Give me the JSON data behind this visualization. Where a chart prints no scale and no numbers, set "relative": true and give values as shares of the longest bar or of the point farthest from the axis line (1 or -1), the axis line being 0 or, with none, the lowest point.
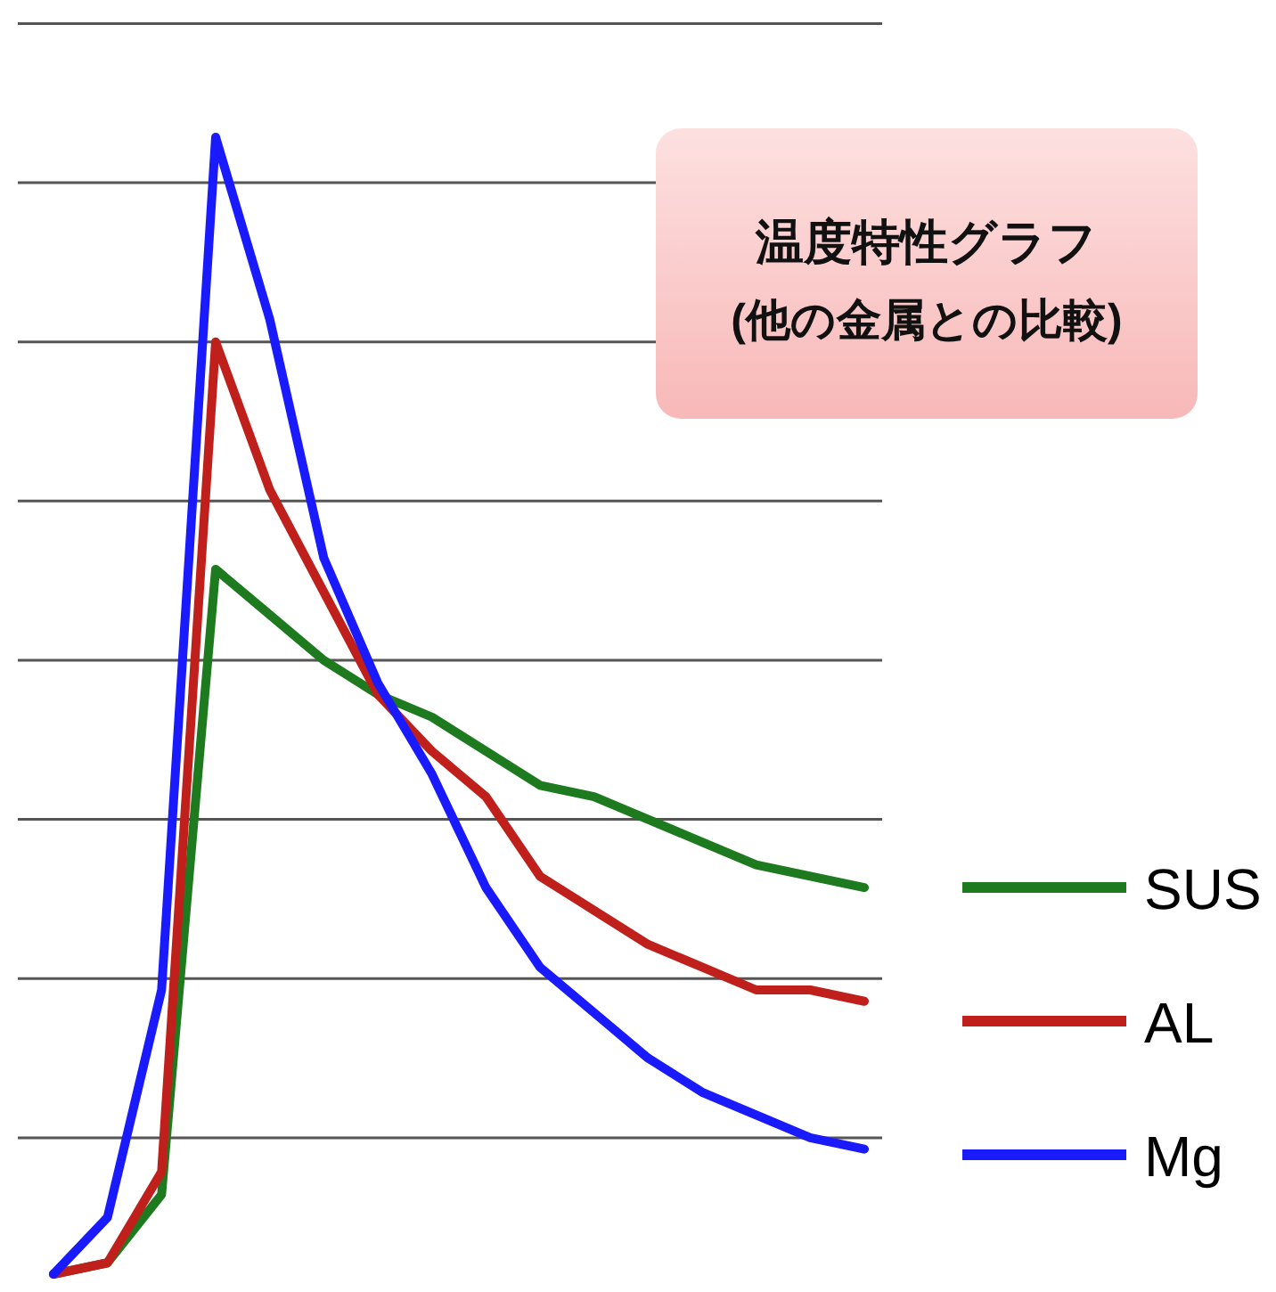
{
  "chart_data": {
    "type": "line",
    "relative": true,
    "title": "温度特性グラフ",
    "subtitle": "(他の金属との比較)",
    "categories": [
      null,
      null,
      null,
      null,
      null,
      null,
      null,
      null,
      null,
      null,
      null,
      null,
      null,
      null,
      null,
      null
    ],
    "series": [
      {
        "name": "SUS",
        "color": "#1e7a1e",
        "values": [
          0,
          0.01,
          0.07,
          0.62,
          0.58,
          0.54,
          0.51,
          0.49,
          0.46,
          0.43,
          0.42,
          0.4,
          0.38,
          0.36,
          0.35,
          0.34
        ]
      },
      {
        "name": "AL",
        "color": "#c0201b",
        "values": [
          0,
          0.01,
          0.09,
          0.82,
          0.69,
          0.6,
          0.51,
          0.46,
          0.42,
          0.35,
          0.32,
          0.29,
          0.27,
          0.25,
          0.25,
          0.24
        ]
      },
      {
        "name": "Mg",
        "color": "#1a1aff",
        "values": [
          0,
          0.05,
          0.25,
          1,
          0.84,
          0.63,
          0.52,
          0.44,
          0.34,
          0.27,
          0.23,
          0.19,
          0.16,
          0.14,
          0.12,
          0.11
        ]
      }
    ],
    "ref_lines": [
      {
        "axis": "y",
        "value": 0.12,
        "color": "#555555"
      },
      {
        "axis": "y",
        "value": 0.26,
        "color": "#555555"
      },
      {
        "axis": "y",
        "value": 0.4,
        "color": "#555555"
      },
      {
        "axis": "y",
        "value": 0.54,
        "color": "#555555"
      },
      {
        "axis": "y",
        "value": 0.68,
        "color": "#555555"
      },
      {
        "axis": "y",
        "value": 0.82,
        "color": "#555555"
      },
      {
        "axis": "y",
        "value": 0.96,
        "color": "#555555"
      },
      {
        "axis": "y",
        "value": 1.1,
        "color": "#555555"
      }
    ],
    "legend": "right",
    "line_style": "solid",
    "marker": "none"
  }
}
